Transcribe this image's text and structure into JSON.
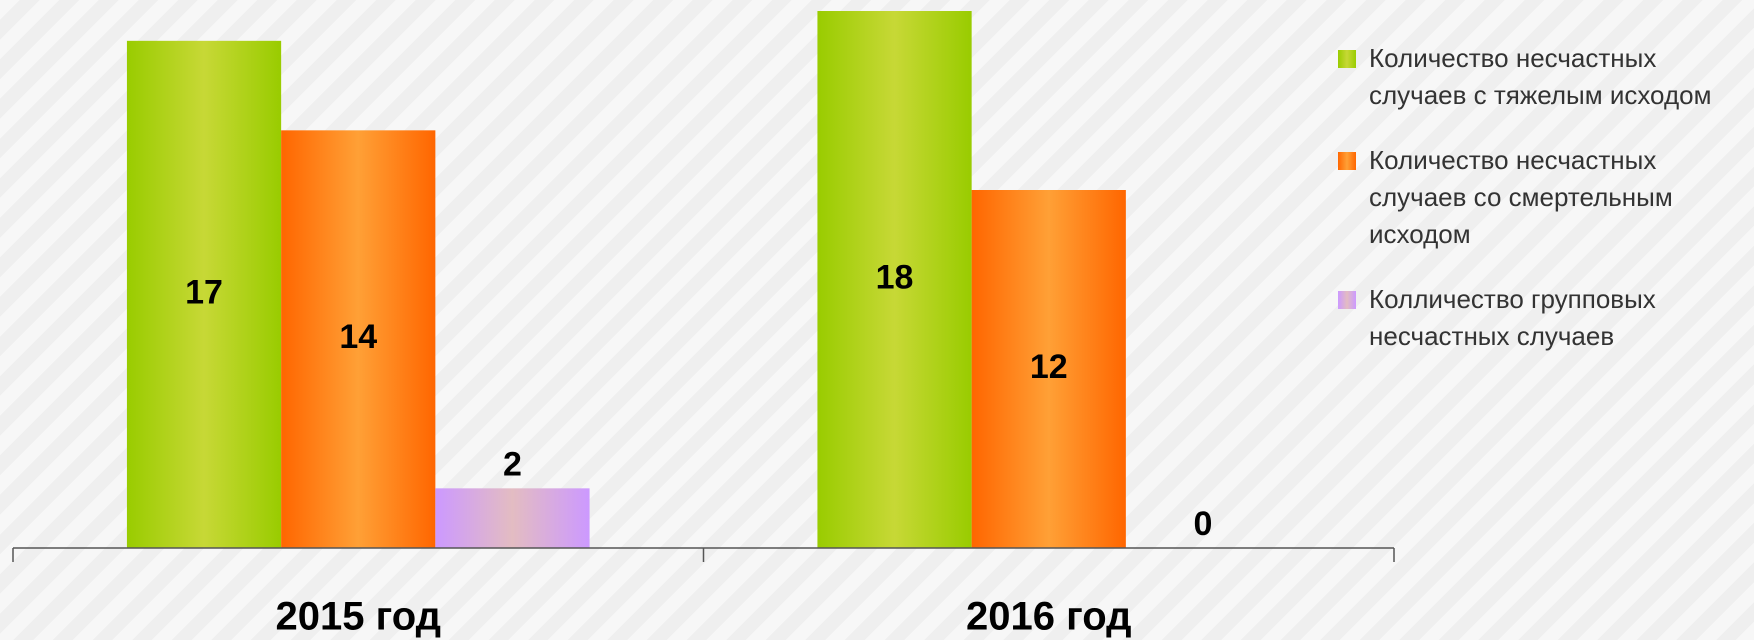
{
  "chart_data": {
    "type": "bar",
    "categories": [
      "2015 год",
      "2016 год"
    ],
    "series": [
      {
        "name": "Количество несчастных случаев с тяжелым исходом",
        "color": "#99cc00",
        "values": [
          17,
          18
        ]
      },
      {
        "name": "Количество несчастных случаев со смертельным исходом",
        "color": "#ff6600",
        "values": [
          14,
          12
        ]
      },
      {
        "name": "Колличество групповых несчастных случаев",
        "color": "#cc99ff",
        "values": [
          2,
          0
        ]
      }
    ],
    "ylim": [
      0,
      18
    ],
    "legend": "right"
  }
}
